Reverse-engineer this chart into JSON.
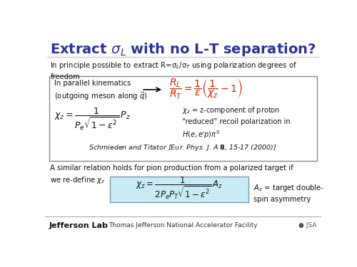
{
  "title_text": "Extract $\\sigma_L$ with no L-T separation?",
  "title_color": "#2c3594",
  "title_fontsize": 14,
  "slide_bg": "#ffffff",
  "body_text1_a": "In principle possible to extract R=σ",
  "body_text1_b": "L",
  "body_text1_c": "/σ",
  "body_text1_d": "T",
  "body_text1_e": " using polarization degrees of\nfreedom",
  "box_left_text": "In parallel kinematics\n(outgoing meson along $\\vec{q}$)",
  "box_formula_top": "$\\dfrac{R_L}{R_T} = \\dfrac{1}{\\epsilon}\\left(\\dfrac{1}{\\chi_z} - 1\\right)$",
  "box_formula_bottom": "$\\chi_z = \\dfrac{1}{P_e\\sqrt{1-\\epsilon^2}}P_z$",
  "box_right_text": "$\\chi_z$ = z-component of proton\n“reduced” recoil polarization in\n$H(e,e'p)\\pi^0$",
  "box_citation": "Schmieden and Titator [Eur. Phys. J. A ",
  "box_citation_bold": "8",
  "box_citation_rest": ", 15-17 (2000)]",
  "body_text2": "A similar relation holds for pion production from a polarized target if\nwe re-define $\\chi_z$",
  "bottom_formula": "$\\chi_z = \\dfrac{1}{2P_eP_T\\sqrt{1-\\epsilon^2}}A_z$",
  "bottom_right_text": "$A_z$ = target double-\nspin asymmetry",
  "footer_left": "Jefferson Lab",
  "footer_center": "Thomas Jefferson National Accelerator Facility",
  "formula_color": "#cc2200",
  "black": "#111111",
  "box_edge": "#888888",
  "box_fill": "#ffffff",
  "bottom_box_fill": "#c8ecf5",
  "footer_line_color": "#aaaaaa"
}
